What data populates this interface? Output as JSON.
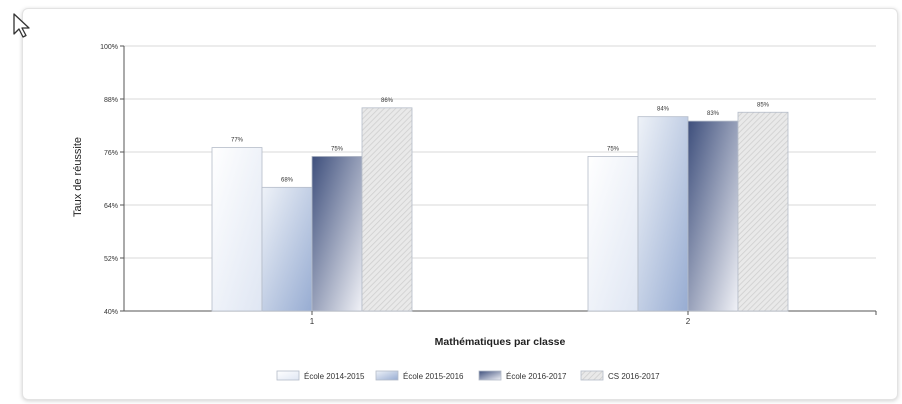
{
  "chart_data": {
    "type": "bar",
    "title": "",
    "xlabel": "Mathématiques par classe",
    "ylabel": "Taux de réussite",
    "categories": [
      "1",
      "2"
    ],
    "ylim": [
      40,
      100
    ],
    "ytick_labels": [
      "40%",
      "52%",
      "64%",
      "76%",
      "88%",
      "100%"
    ],
    "grid": true,
    "legend_position": "bottom",
    "series": [
      {
        "name": "École 2014-2015",
        "values": [
          77,
          75
        ],
        "labels": [
          "77%",
          "75%"
        ],
        "color_from": "#ffffff",
        "color_to": "#dfe6f3"
      },
      {
        "name": "École 2015-2016",
        "values": [
          68,
          84
        ],
        "labels": [
          "68%",
          "84%"
        ],
        "color_from": "#eef2f8",
        "color_to": "#97acd2"
      },
      {
        "name": "École 2016-2017",
        "values": [
          75,
          83
        ],
        "labels": [
          "75%",
          "83%"
        ],
        "color_from": "#3e4f7c",
        "color_to": "#f1f2f7"
      },
      {
        "name": "CS 2016-2017",
        "values": [
          86,
          85
        ],
        "labels": [
          "86%",
          "85%"
        ],
        "color_from": "#cfcfcf",
        "color_to": "#cfcfcf",
        "pattern": "hatch"
      }
    ]
  }
}
